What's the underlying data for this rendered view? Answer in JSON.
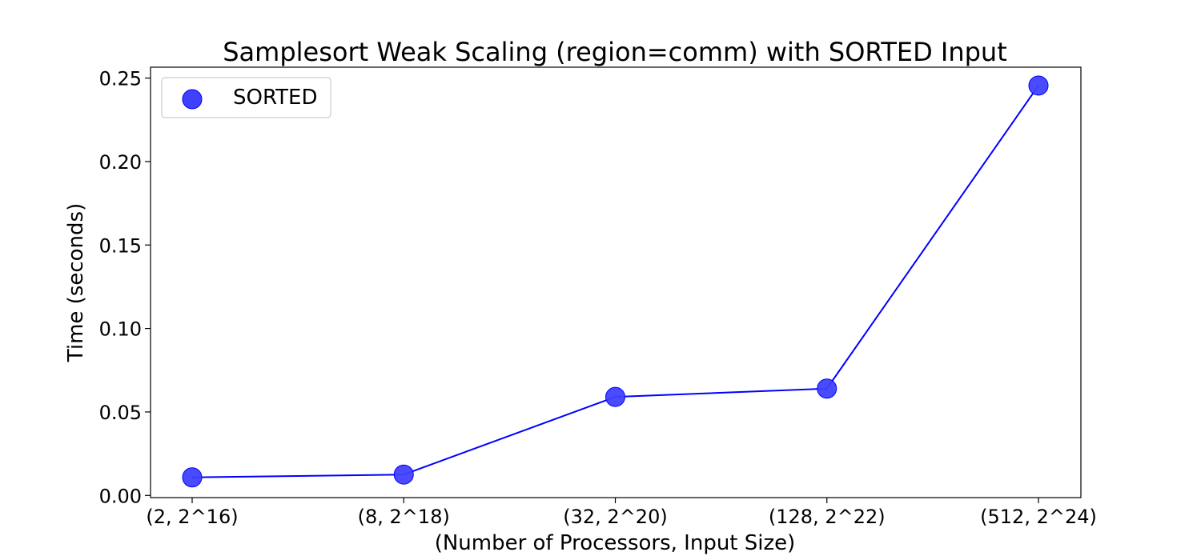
{
  "chart_data": {
    "type": "scatter",
    "title": "Samplesort Weak Scaling (region=comm) with SORTED Input",
    "xlabel": "(Number of Processors, Input Size)",
    "ylabel": "Time (seconds)",
    "categories": [
      "(2, 2^16)",
      "(8, 2^18)",
      "(32, 2^20)",
      "(128, 2^22)",
      "(512, 2^24)"
    ],
    "ylim": [
      -0.0013,
      0.2565
    ],
    "yticks": [
      0.0,
      0.05,
      0.1,
      0.15,
      0.2,
      0.25
    ],
    "ytick_labels": [
      "0.00",
      "0.05",
      "0.10",
      "0.15",
      "0.20",
      "0.25"
    ],
    "grid": false,
    "legend_position": "upper-left",
    "series": [
      {
        "name": "SORTED",
        "color": "#0000ff",
        "marker_color": "#4040ff",
        "line": true,
        "values": [
          0.0108,
          0.0125,
          0.059,
          0.064,
          0.2455
        ]
      }
    ]
  }
}
